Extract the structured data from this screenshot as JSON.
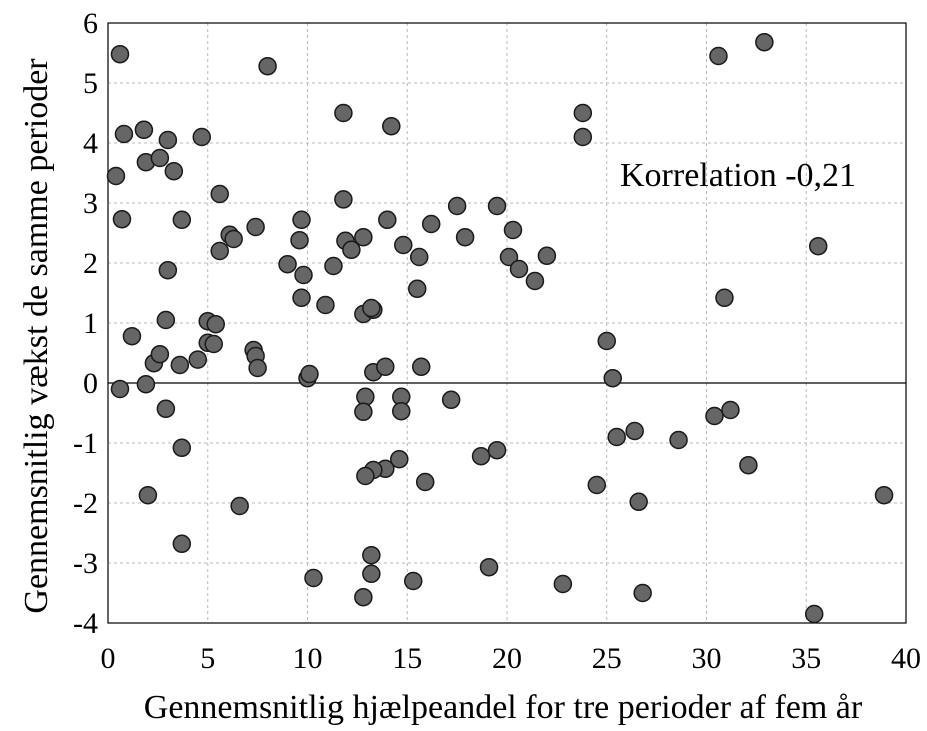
{
  "chart_data": {
    "type": "scatter",
    "title": "",
    "xlabel": "Gennemsnitlig hjælpeandel for tre perioder af fem år",
    "ylabel": "Gennemsnitlig vækst de samme perioder",
    "annotation": "Korrelation -0,21",
    "xlim": [
      0,
      40
    ],
    "ylim": [
      -4,
      6
    ],
    "xticks": [
      "0",
      "5",
      "10",
      "15",
      "20",
      "25",
      "30",
      "35",
      "40"
    ],
    "yticks": [
      "6",
      "5",
      "4",
      "3",
      "2",
      "1",
      "0",
      "-1",
      "-2",
      "-3",
      "-4"
    ],
    "grid": true,
    "points": [
      [
        0.6,
        5.48
      ],
      [
        0.4,
        3.45
      ],
      [
        0.8,
        4.15
      ],
      [
        1.8,
        4.22
      ],
      [
        1.9,
        3.68
      ],
      [
        2.6,
        3.75
      ],
      [
        3.0,
        4.05
      ],
      [
        3.3,
        3.53
      ],
      [
        4.7,
        4.1
      ],
      [
        5.6,
        3.15
      ],
      [
        0.7,
        2.73
      ],
      [
        3.7,
        2.72
      ],
      [
        3.0,
        1.88
      ],
      [
        6.1,
        2.47
      ],
      [
        5.6,
        2.2
      ],
      [
        6.3,
        2.4
      ],
      [
        7.4,
        2.6
      ],
      [
        8.0,
        5.28
      ],
      [
        1.2,
        0.78
      ],
      [
        2.9,
        1.05
      ],
      [
        5.0,
        1.03
      ],
      [
        5.4,
        0.98
      ],
      [
        5.0,
        0.67
      ],
      [
        5.3,
        0.65
      ],
      [
        4.5,
        0.39
      ],
      [
        3.6,
        0.3
      ],
      [
        2.3,
        0.33
      ],
      [
        2.6,
        0.48
      ],
      [
        7.3,
        0.55
      ],
      [
        7.4,
        0.45
      ],
      [
        7.5,
        0.25
      ],
      [
        0.6,
        -0.1
      ],
      [
        1.9,
        -0.02
      ],
      [
        2.9,
        -0.43
      ],
      [
        3.7,
        -1.08
      ],
      [
        2.0,
        -1.87
      ],
      [
        3.7,
        -2.68
      ],
      [
        6.6,
        -2.05
      ],
      [
        9.0,
        1.98
      ],
      [
        9.6,
        2.38
      ],
      [
        9.7,
        2.72
      ],
      [
        9.8,
        1.8
      ],
      [
        9.7,
        1.42
      ],
      [
        10.0,
        0.08
      ],
      [
        10.1,
        0.15
      ],
      [
        10.3,
        -3.25
      ],
      [
        10.9,
        1.3
      ],
      [
        11.3,
        1.95
      ],
      [
        11.8,
        4.5
      ],
      [
        11.8,
        3.06
      ],
      [
        11.9,
        2.37
      ],
      [
        12.2,
        2.22
      ],
      [
        12.8,
        2.43
      ],
      [
        12.8,
        1.15
      ],
      [
        13.3,
        1.22
      ],
      [
        13.2,
        1.25
      ],
      [
        12.9,
        -0.23
      ],
      [
        12.8,
        -0.48
      ],
      [
        13.3,
        0.18
      ],
      [
        13.9,
        0.27
      ],
      [
        14.0,
        2.72
      ],
      [
        14.2,
        4.28
      ],
      [
        14.8,
        2.3
      ],
      [
        15.6,
        2.1
      ],
      [
        15.5,
        1.57
      ],
      [
        15.7,
        0.27
      ],
      [
        14.7,
        -0.23
      ],
      [
        14.7,
        -0.47
      ],
      [
        14.6,
        -1.27
      ],
      [
        13.9,
        -1.43
      ],
      [
        13.3,
        -1.45
      ],
      [
        12.9,
        -1.55
      ],
      [
        13.2,
        -2.87
      ],
      [
        13.2,
        -3.18
      ],
      [
        12.8,
        -3.57
      ],
      [
        15.3,
        -3.3
      ],
      [
        15.9,
        -1.65
      ],
      [
        16.2,
        2.65
      ],
      [
        17.2,
        -0.28
      ],
      [
        17.5,
        2.95
      ],
      [
        17.9,
        2.43
      ],
      [
        18.7,
        -1.22
      ],
      [
        19.1,
        -3.07
      ],
      [
        19.5,
        2.95
      ],
      [
        19.5,
        -1.12
      ],
      [
        20.1,
        2.1
      ],
      [
        20.3,
        2.55
      ],
      [
        20.6,
        1.9
      ],
      [
        21.4,
        1.7
      ],
      [
        22.0,
        2.12
      ],
      [
        22.8,
        -3.35
      ],
      [
        23.8,
        4.5
      ],
      [
        23.8,
        4.1
      ],
      [
        24.5,
        -1.7
      ],
      [
        25.0,
        0.7
      ],
      [
        25.3,
        0.08
      ],
      [
        25.5,
        -0.9
      ],
      [
        26.4,
        -0.8
      ],
      [
        26.6,
        -1.98
      ],
      [
        26.8,
        -3.5
      ],
      [
        28.6,
        -0.95
      ],
      [
        30.4,
        -0.55
      ],
      [
        30.6,
        5.45
      ],
      [
        30.9,
        1.42
      ],
      [
        31.2,
        -0.45
      ],
      [
        32.1,
        -1.37
      ],
      [
        32.9,
        5.68
      ],
      [
        35.6,
        2.28
      ],
      [
        35.4,
        -3.85
      ],
      [
        38.9,
        -1.87
      ]
    ]
  }
}
